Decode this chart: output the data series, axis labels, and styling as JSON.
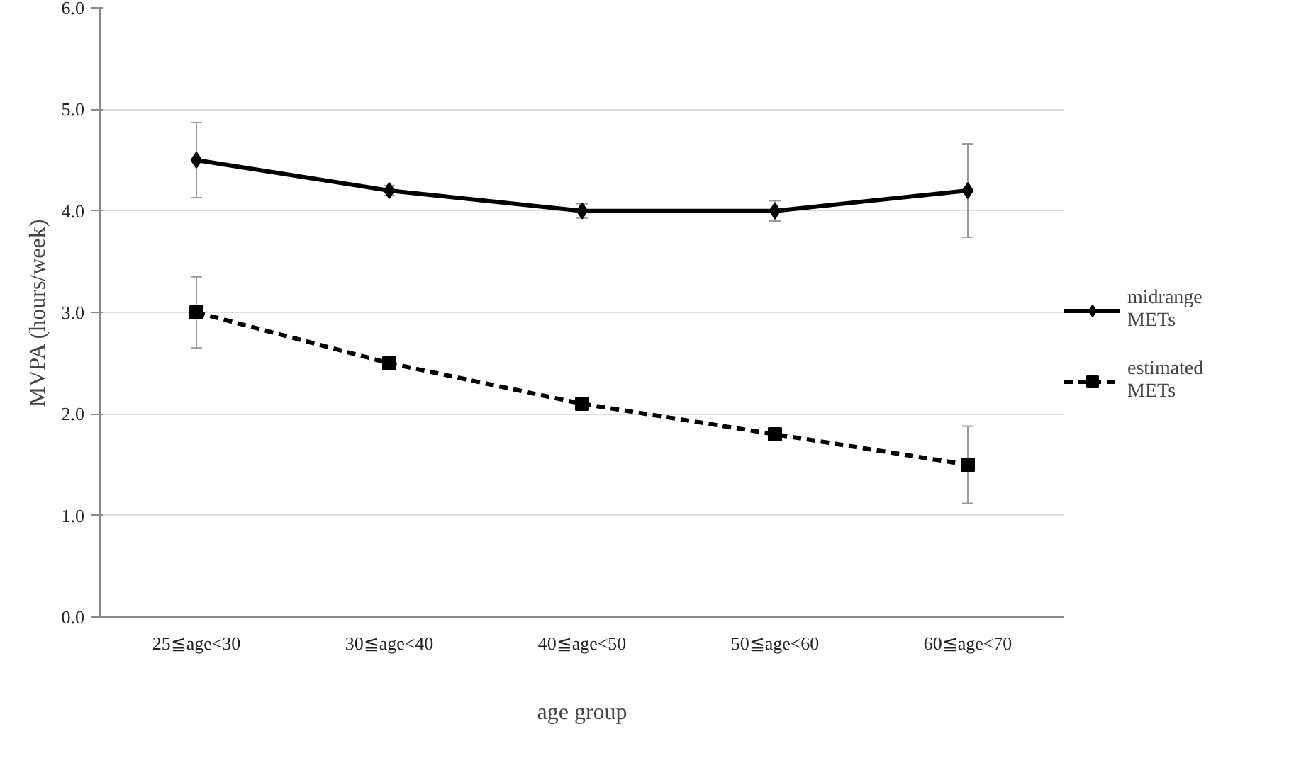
{
  "chart_data": {
    "type": "line",
    "xlabel": "age group",
    "ylabel": "MVPA (hours/week)",
    "categories": [
      "25≦age<30",
      "30≦age<40",
      "40≦age<50",
      "50≦age<60",
      "60≦age<70"
    ],
    "series": [
      {
        "name": "midrange METs",
        "color": "#000000",
        "marker": "diamond",
        "line_style": "solid",
        "values": [
          4.5,
          4.2,
          4.0,
          4.0,
          4.2
        ],
        "errors": [
          0.37,
          0.05,
          0.07,
          0.1,
          0.46
        ]
      },
      {
        "name": "estimated METs",
        "color": "#000000",
        "marker": "square",
        "line_style": "dashed",
        "values": [
          3.0,
          2.5,
          2.1,
          1.8,
          1.5
        ],
        "errors": [
          0.35,
          0.02,
          0.03,
          0.06,
          0.38
        ]
      }
    ],
    "ylim": [
      0.0,
      6.0
    ],
    "yticks": [
      {
        "value": 0,
        "label": "0.0"
      },
      {
        "value": 1,
        "label": "1.0"
      },
      {
        "value": 2,
        "label": "2.0"
      },
      {
        "value": 3,
        "label": "3.0"
      },
      {
        "value": 4,
        "label": "4.0"
      },
      {
        "value": 5,
        "label": "5.0"
      },
      {
        "value": 6,
        "label": "6.0"
      }
    ],
    "grid": "y",
    "legend": "right"
  }
}
